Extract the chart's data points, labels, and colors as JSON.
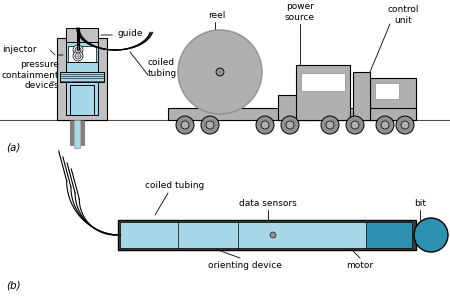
{
  "light_blue": "#a8d8e8",
  "gray": "#c0c0c0",
  "dark_gray": "#909090",
  "medium_gray": "#b0b0b0",
  "black": "#000000",
  "white": "#ffffff",
  "dark_blue": "#3090b0",
  "label_fontsize": 6.5,
  "panel_a_label": "(a)",
  "panel_b_label": "(b)",
  "injector_label": "injector",
  "guide_label": "guide",
  "pressure_label": "pressure\ncontainment\ndevices",
  "coiled_tubing_label": "coiled\ntubing",
  "reel_label": "reel",
  "power_source_label": "power\nsource",
  "control_unit_label": "control\nunit",
  "coiled_tubing_b_label": "coiled tubing",
  "data_sensors_label": "data sensors",
  "bit_label": "bit",
  "orienting_device_label": "orienting device",
  "motor_label": "motor"
}
